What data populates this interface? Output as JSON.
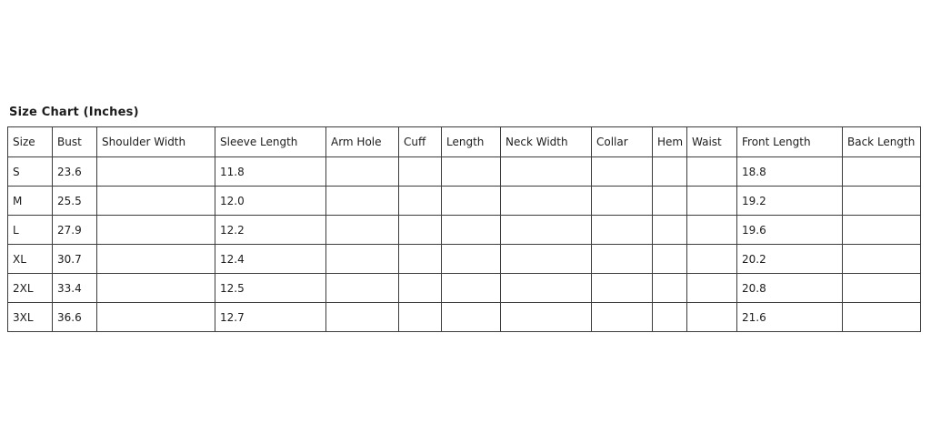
{
  "title": "Size Chart (Inches)",
  "chart_data": {
    "type": "table",
    "title": "Size Chart (Inches)",
    "unit": "Inches",
    "columns": [
      "Size",
      "Bust",
      "Shoulder Width",
      "Sleeve Length",
      "Arm Hole",
      "Cuff",
      "Length",
      "Neck Width",
      "Collar",
      "Hem",
      "Waist",
      "Front Length",
      "Back Length"
    ],
    "rows": [
      [
        "S",
        "23.6",
        "",
        "11.8",
        "",
        "",
        "",
        "",
        "",
        "",
        "",
        "18.8",
        ""
      ],
      [
        "M",
        "25.5",
        "",
        "12.0",
        "",
        "",
        "",
        "",
        "",
        "",
        "",
        "19.2",
        ""
      ],
      [
        "L",
        "27.9",
        "",
        "12.2",
        "",
        "",
        "",
        "",
        "",
        "",
        "",
        "19.6",
        ""
      ],
      [
        "XL",
        "30.7",
        "",
        "12.4",
        "",
        "",
        "",
        "",
        "",
        "",
        "",
        "20.2",
        ""
      ],
      [
        "2XL",
        "33.4",
        "",
        "12.5",
        "",
        "",
        "",
        "",
        "",
        "",
        "",
        "20.8",
        ""
      ],
      [
        "3XL",
        "36.6",
        "",
        "12.7",
        "",
        "",
        "",
        "",
        "",
        "",
        "",
        "21.6",
        ""
      ]
    ]
  },
  "colors": {
    "background": "#ffffff",
    "border": "#3c3c3c",
    "text": "#1c1c1c"
  }
}
